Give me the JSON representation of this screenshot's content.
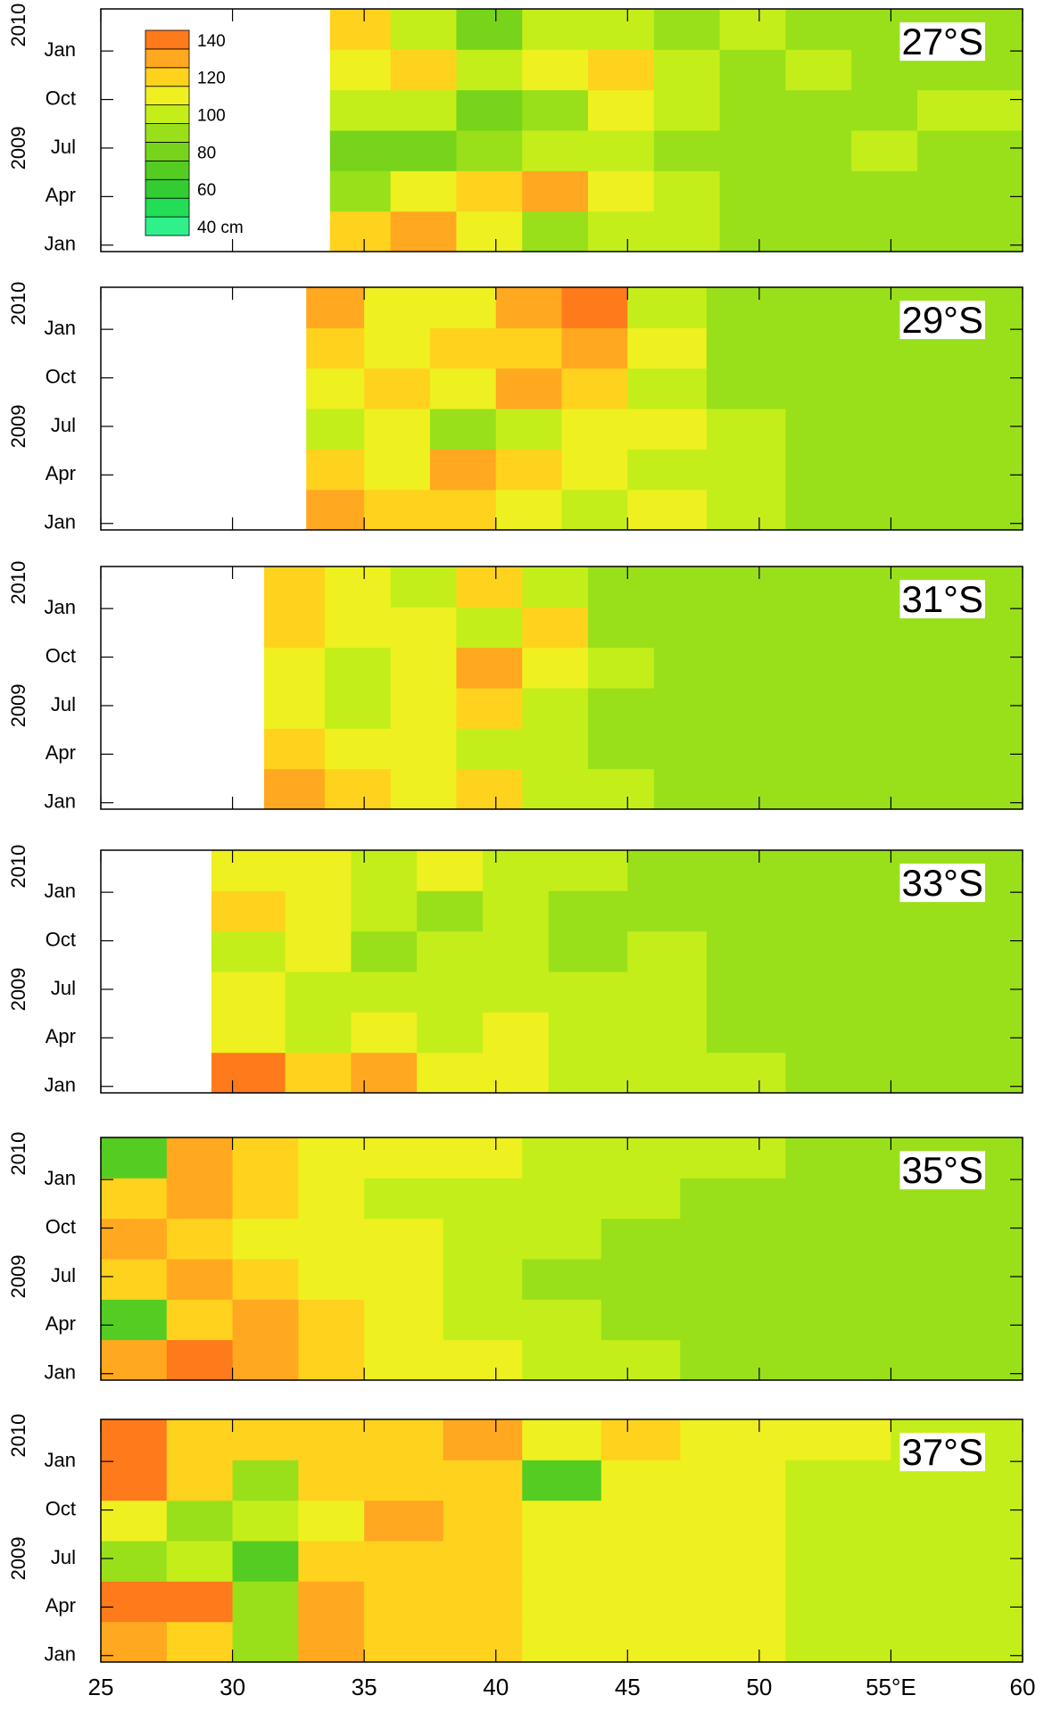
{
  "chart_data": [
    {
      "type": "heatmap",
      "label": "27°S",
      "xlim": [
        25,
        60
      ],
      "xticks": [
        25,
        30,
        35,
        40,
        45,
        50,
        55,
        60
      ],
      "ylim": [
        -0.4,
        14.6
      ],
      "yticks": [
        {
          "value": 0,
          "label": "Jan"
        },
        {
          "value": 3,
          "label": "Apr"
        },
        {
          "value": 6,
          "label": "Jul"
        },
        {
          "value": 9,
          "label": "Oct"
        },
        {
          "value": 12,
          "label": "Jan"
        }
      ],
      "year_labels": [
        {
          "value": 6,
          "label": "2009"
        },
        {
          "value": 13.6,
          "label": "2010"
        }
      ],
      "x_edges": [
        33.7,
        36,
        38.5,
        41,
        43.5,
        46,
        48.5,
        51,
        53.5,
        56,
        60
      ],
      "y_edges": [
        -0.4,
        2.1,
        4.6,
        7.1,
        9.6,
        12.1,
        14.6
      ],
      "values": [
        [
          125,
          130,
          110,
          95,
          105,
          100,
          95,
          95,
          90,
          95
        ],
        [
          95,
          110,
          120,
          130,
          115,
          100,
          95,
          90,
          90,
          95
        ],
        [
          85,
          80,
          90,
          100,
          105,
          95,
          90,
          95,
          100,
          95
        ],
        [
          105,
          100,
          85,
          95,
          110,
          100,
          95,
          90,
          95,
          100
        ],
        [
          110,
          120,
          105,
          115,
          125,
          100,
          95,
          100,
          95,
          95
        ],
        [
          120,
          105,
          80,
          100,
          105,
          95,
          100,
          95,
          90,
          95
        ]
      ],
      "colorbar": {
        "bounds": [
          40,
          50,
          60,
          70,
          80,
          90,
          100,
          110,
          120,
          130,
          140,
          150
        ],
        "colors": [
          "#30f08c",
          "#22dd55",
          "#33cc33",
          "#55cc22",
          "#77d41a",
          "#99e01a",
          "#c4ee1a",
          "#eef020",
          "#ffd21e",
          "#ffa820",
          "#ff7a1a"
        ],
        "ticks": [
          140,
          120,
          100,
          80,
          60,
          {
            "value": 40,
            "label": "40 cm"
          }
        ]
      }
    },
    {
      "type": "heatmap",
      "label": "29°S",
      "xlim": [
        25,
        60
      ],
      "xticks": [
        25,
        30,
        35,
        40,
        45,
        50,
        55,
        60
      ],
      "ylim": [
        -0.4,
        14.6
      ],
      "yticks": [
        {
          "value": 0,
          "label": "Jan"
        },
        {
          "value": 3,
          "label": "Apr"
        },
        {
          "value": 6,
          "label": "Jul"
        },
        {
          "value": 9,
          "label": "Oct"
        },
        {
          "value": 12,
          "label": "Jan"
        }
      ],
      "year_labels": [
        {
          "value": 6,
          "label": "2009"
        },
        {
          "value": 13.6,
          "label": "2010"
        }
      ],
      "x_edges": [
        32.8,
        35,
        37.5,
        40,
        42.5,
        45,
        48,
        51,
        54,
        57,
        60
      ],
      "y_edges": [
        -0.4,
        2.1,
        4.6,
        7.1,
        9.6,
        12.1,
        14.6
      ],
      "values": [
        [
          135,
          125,
          120,
          110,
          105,
          110,
          100,
          95,
          95,
          95
        ],
        [
          120,
          115,
          130,
          120,
          110,
          105,
          100,
          95,
          90,
          95
        ],
        [
          100,
          110,
          95,
          100,
          115,
          110,
          100,
          95,
          95,
          90
        ],
        [
          110,
          125,
          115,
          130,
          120,
          105,
          95,
          90,
          90,
          95
        ],
        [
          120,
          110,
          120,
          125,
          135,
          110,
          95,
          95,
          95,
          90
        ],
        [
          130,
          115,
          110,
          130,
          140,
          100,
          95,
          95,
          90,
          95
        ]
      ]
    },
    {
      "type": "heatmap",
      "label": "31°S",
      "xlim": [
        25,
        60
      ],
      "xticks": [
        25,
        30,
        35,
        40,
        45,
        50,
        55,
        60
      ],
      "ylim": [
        -0.4,
        14.6
      ],
      "yticks": [
        {
          "value": 0,
          "label": "Jan"
        },
        {
          "value": 3,
          "label": "Apr"
        },
        {
          "value": 6,
          "label": "Jul"
        },
        {
          "value": 9,
          "label": "Oct"
        },
        {
          "value": 12,
          "label": "Jan"
        }
      ],
      "year_labels": [
        {
          "value": 6,
          "label": "2009"
        },
        {
          "value": 13.6,
          "label": "2010"
        }
      ],
      "x_edges": [
        31.2,
        33.5,
        36,
        38.5,
        41,
        43.5,
        46,
        49,
        52,
        56,
        60
      ],
      "y_edges": [
        -0.4,
        2.1,
        4.6,
        7.1,
        9.6,
        12.1,
        14.6
      ],
      "values": [
        [
          135,
          120,
          115,
          120,
          105,
          100,
          95,
          95,
          90,
          95
        ],
        [
          125,
          115,
          110,
          105,
          100,
          95,
          90,
          90,
          90,
          95
        ],
        [
          115,
          105,
          110,
          120,
          100,
          95,
          90,
          90,
          90,
          90
        ],
        [
          110,
          100,
          115,
          130,
          110,
          100,
          90,
          90,
          90,
          90
        ],
        [
          120,
          110,
          115,
          105,
          120,
          95,
          95,
          90,
          90,
          95
        ],
        [
          125,
          110,
          105,
          120,
          100,
          95,
          90,
          95,
          90,
          90
        ]
      ]
    },
    {
      "type": "heatmap",
      "label": "33°S",
      "xlim": [
        25,
        60
      ],
      "xticks": [
        25,
        30,
        35,
        40,
        45,
        50,
        55,
        60
      ],
      "ylim": [
        -0.4,
        14.6
      ],
      "yticks": [
        {
          "value": 0,
          "label": "Jan"
        },
        {
          "value": 3,
          "label": "Apr"
        },
        {
          "value": 6,
          "label": "Jul"
        },
        {
          "value": 9,
          "label": "Oct"
        },
        {
          "value": 12,
          "label": "Jan"
        }
      ],
      "year_labels": [
        {
          "value": 6,
          "label": "2009"
        },
        {
          "value": 13.6,
          "label": "2010"
        }
      ],
      "x_edges": [
        29.2,
        32,
        34.5,
        37,
        39.5,
        42,
        45,
        48,
        51,
        55,
        60
      ],
      "y_edges": [
        -0.4,
        2.1,
        4.6,
        7.1,
        9.6,
        12.1,
        14.6
      ],
      "values": [
        [
          140,
          120,
          130,
          115,
          110,
          105,
          105,
          100,
          95,
          95
        ],
        [
          115,
          100,
          110,
          105,
          110,
          105,
          100,
          95,
          95,
          90
        ],
        [
          110,
          105,
          100,
          105,
          100,
          100,
          105,
          95,
          90,
          95
        ],
        [
          105,
          110,
          95,
          100,
          105,
          95,
          100,
          95,
          95,
          90
        ],
        [
          125,
          110,
          100,
          95,
          100,
          95,
          90,
          95,
          90,
          90
        ],
        [
          115,
          110,
          105,
          110,
          100,
          100,
          95,
          95,
          95,
          90
        ]
      ]
    },
    {
      "type": "heatmap",
      "label": "35°S",
      "xlim": [
        25,
        60
      ],
      "xticks": [
        25,
        30,
        35,
        40,
        45,
        50,
        55,
        60
      ],
      "ylim": [
        -0.4,
        14.6
      ],
      "yticks": [
        {
          "value": 0,
          "label": "Jan"
        },
        {
          "value": 3,
          "label": "Apr"
        },
        {
          "value": 6,
          "label": "Jul"
        },
        {
          "value": 9,
          "label": "Oct"
        },
        {
          "value": 12,
          "label": "Jan"
        }
      ],
      "year_labels": [
        {
          "value": 6,
          "label": "2009"
        },
        {
          "value": 13.6,
          "label": "2010"
        }
      ],
      "x_edges": [
        25,
        27.5,
        30,
        32.5,
        35,
        38,
        41,
        44,
        47,
        51,
        55,
        60
      ],
      "y_edges": [
        -0.4,
        2.1,
        4.6,
        7.1,
        9.6,
        12.1,
        14.6
      ],
      "values": [
        [
          130,
          140,
          135,
          125,
          115,
          110,
          105,
          100,
          95,
          95,
          95
        ],
        [
          75,
          125,
          130,
          120,
          110,
          105,
          100,
          95,
          90,
          90,
          90
        ],
        [
          125,
          130,
          120,
          115,
          110,
          100,
          95,
          90,
          95,
          90,
          90
        ],
        [
          130,
          120,
          115,
          115,
          110,
          100,
          100,
          95,
          95,
          90,
          90
        ],
        [
          125,
          130,
          125,
          110,
          105,
          105,
          100,
          100,
          95,
          90,
          95
        ],
        [
          70,
          135,
          125,
          115,
          110,
          110,
          105,
          100,
          100,
          95,
          95
        ]
      ]
    },
    {
      "type": "heatmap",
      "label": "37°S",
      "xlim": [
        25,
        60
      ],
      "xticks": [
        25,
        30,
        35,
        40,
        45,
        50,
        {
          "value": 55,
          "label": "55°E"
        },
        60
      ],
      "ylim": [
        -0.4,
        14.6
      ],
      "yticks": [
        {
          "value": 0,
          "label": "Jan"
        },
        {
          "value": 3,
          "label": "Apr"
        },
        {
          "value": 6,
          "label": "Jul"
        },
        {
          "value": 9,
          "label": "Oct"
        },
        {
          "value": 12,
          "label": "Jan"
        }
      ],
      "year_labels": [
        {
          "value": 6,
          "label": "2009"
        },
        {
          "value": 13.6,
          "label": "2010"
        }
      ],
      "x_edges": [
        25,
        27.5,
        30,
        32.5,
        35,
        38,
        41,
        44,
        47,
        51,
        55,
        60
      ],
      "y_edges": [
        -0.4,
        2.1,
        4.6,
        7.1,
        9.6,
        12.1,
        14.6
      ],
      "values": [
        [
          135,
          120,
          90,
          130,
          125,
          120,
          115,
          110,
          110,
          105,
          100
        ],
        [
          140,
          150,
          90,
          130,
          125,
          120,
          115,
          110,
          110,
          105,
          100
        ],
        [
          90,
          100,
          75,
          120,
          125,
          120,
          115,
          110,
          110,
          105,
          105
        ],
        [
          110,
          90,
          100,
          115,
          130,
          125,
          115,
          110,
          110,
          105,
          100
        ],
        [
          140,
          120,
          95,
          120,
          120,
          125,
          70,
          110,
          110,
          105,
          105
        ],
        [
          140,
          125,
          120,
          120,
          125,
          130,
          115,
          120,
          115,
          110,
          105
        ]
      ]
    }
  ]
}
